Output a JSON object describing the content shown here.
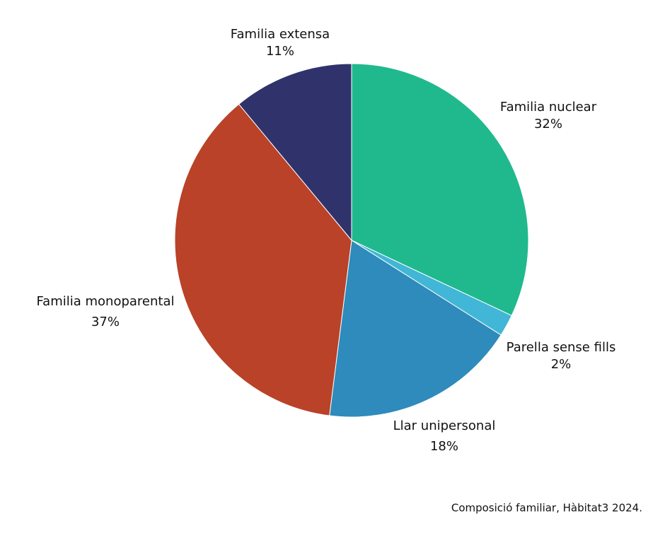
{
  "chart_data": {
    "type": "pie",
    "categories": [
      "Familia nuclear",
      "Parella sense fills",
      "Llar unipersonal",
      "Familia monoparental",
      "Familia extensa"
    ],
    "values": [
      32,
      2,
      18,
      37,
      11
    ],
    "value_labels": [
      "32%",
      "2%",
      "18%",
      "37%",
      "11%"
    ],
    "colors": [
      "#20b98e",
      "#41b6d6",
      "#2e8bbb",
      "#b94228",
      "#30336b"
    ],
    "caption": "Composició familiar, Hàbitat3 2024."
  }
}
